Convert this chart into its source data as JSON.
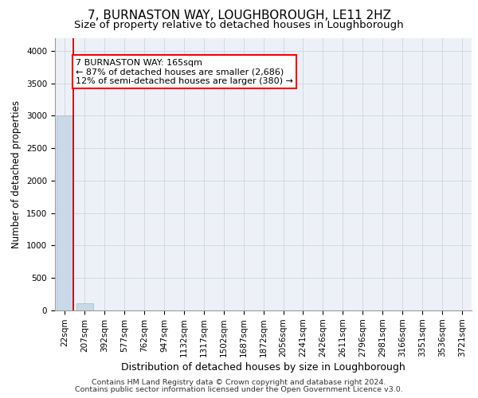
{
  "title1": "7, BURNASTON WAY, LOUGHBOROUGH, LE11 2HZ",
  "title2": "Size of property relative to detached houses in Loughborough",
  "xlabel": "Distribution of detached houses by size in Loughborough",
  "ylabel": "Number of detached properties",
  "footer1": "Contains HM Land Registry data © Crown copyright and database right 2024.",
  "footer2": "Contains public sector information licensed under the Open Government Licence v3.0.",
  "categories": [
    "22sqm",
    "207sqm",
    "392sqm",
    "577sqm",
    "762sqm",
    "947sqm",
    "1132sqm",
    "1317sqm",
    "1502sqm",
    "1687sqm",
    "1872sqm",
    "2056sqm",
    "2241sqm",
    "2426sqm",
    "2611sqm",
    "2796sqm",
    "2981sqm",
    "3166sqm",
    "3351sqm",
    "3536sqm",
    "3721sqm"
  ],
  "bar_values": [
    3007,
    113,
    0,
    0,
    0,
    0,
    0,
    0,
    0,
    0,
    0,
    0,
    0,
    0,
    0,
    0,
    0,
    0,
    0,
    0,
    0
  ],
  "bar_color": "#c9d9e8",
  "bar_edge_color": "#a8bfd0",
  "property_line_color": "#cc0000",
  "ylim": [
    0,
    4200
  ],
  "yticks": [
    0,
    500,
    1000,
    1500,
    2000,
    2500,
    3000,
    3500,
    4000
  ],
  "annotation_title": "7 BURNASTON WAY: 165sqm",
  "annotation_line1": "← 87% of detached houses are smaller (2,686)",
  "annotation_line2": "12% of semi-detached houses are larger (380) →",
  "grid_color": "#ccd5e0",
  "bg_color": "#edf1f7",
  "title1_fontsize": 11,
  "title2_fontsize": 9.5,
  "xlabel_fontsize": 9,
  "ylabel_fontsize": 8.5,
  "tick_fontsize": 7.5,
  "footer_fontsize": 6.8,
  "annot_fontsize": 8
}
